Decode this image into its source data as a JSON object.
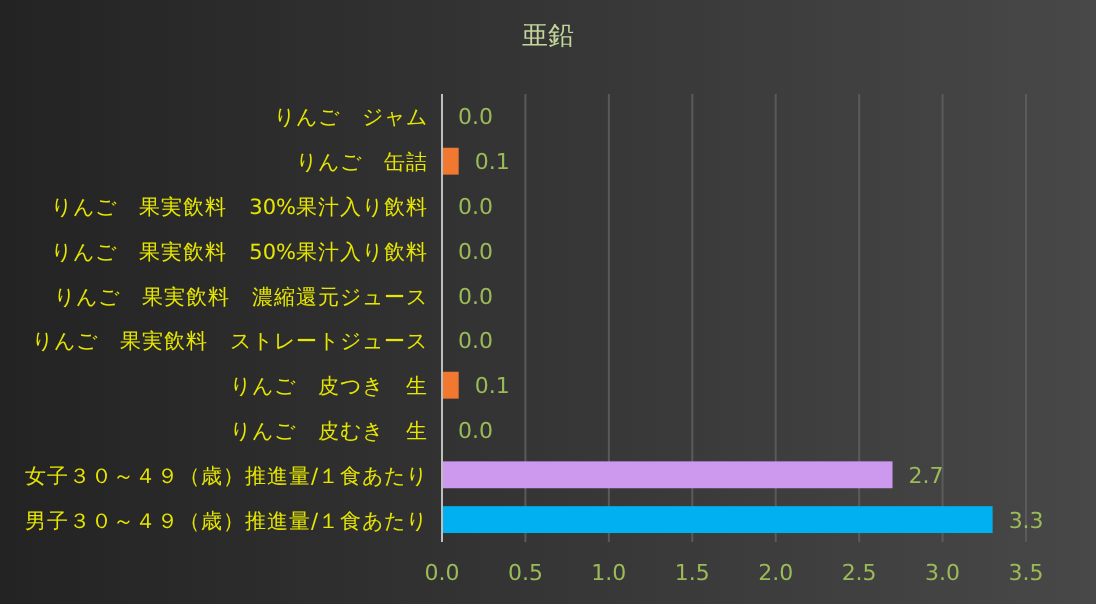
{
  "chart_data": {
    "type": "bar",
    "orientation": "horizontal",
    "title": "亜鉛",
    "categories": [
      "りんご　ジャム",
      "りんご　缶詰",
      "りんご　果実飲料　30%果汁入り飲料",
      "りんご　果実飲料　50%果汁入り飲料",
      "りんご　果実飲料　濃縮還元ジュース",
      "りんご　果実飲料　ストレートジュース",
      "りんご　皮つき　生",
      "りんご　皮むき　生",
      "女子３０～４９（歳）推進量/１食あたり",
      "男子３０～４９（歳）推進量/１食あたり"
    ],
    "values": [
      0,
      0.1,
      0,
      0,
      0,
      0,
      0.1,
      0,
      2.7,
      3.3
    ],
    "value_labels": [
      "0.0",
      "0.1",
      "0.0",
      "0.0",
      "0.0",
      "0.0",
      "0.1",
      "0.0",
      "2.7",
      "3.3"
    ],
    "colors": [
      "#f07830",
      "#f07830",
      "#f07830",
      "#f07830",
      "#f07830",
      "#f07830",
      "#f07830",
      "#f07830",
      "#cc99ee",
      "#00b0f0"
    ],
    "xlim": [
      0,
      3.5
    ],
    "xticks": [
      {
        "value": 0,
        "label": "0.0"
      },
      {
        "value": 0.5,
        "label": "0.5"
      },
      {
        "value": 1,
        "label": "1.0"
      },
      {
        "value": 1.5,
        "label": "1.5"
      },
      {
        "value": 2,
        "label": "2.0"
      },
      {
        "value": 2.5,
        "label": "2.5"
      },
      {
        "value": 3,
        "label": "3.0"
      },
      {
        "value": 3.5,
        "label": "3.5"
      }
    ],
    "grid": "x"
  }
}
